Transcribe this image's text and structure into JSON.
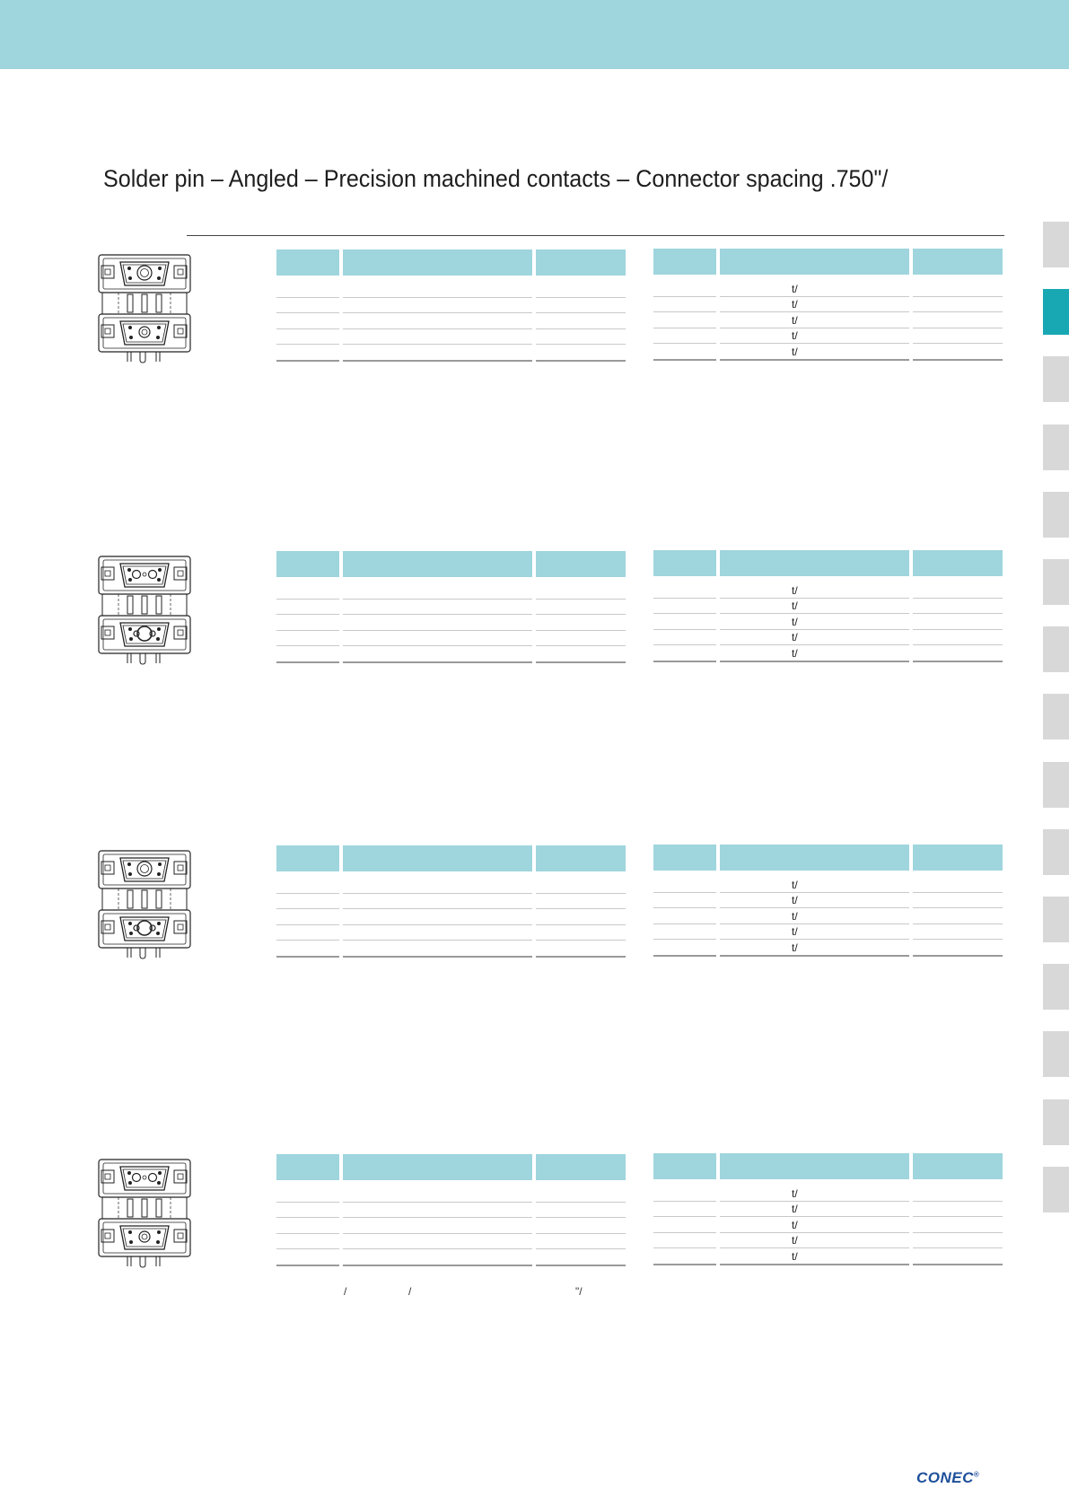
{
  "header": {
    "title": "Solder pin – Angled – Precision machined contacts – Connector spacing .750\"/"
  },
  "side_tabs": {
    "count": 15,
    "active_index": 1
  },
  "sections": [
    {
      "id": "s1",
      "table_right_cells": [
        "t/",
        "t/",
        "t/",
        "t/",
        "t/"
      ]
    },
    {
      "id": "s2",
      "table_right_cells": [
        "t/",
        "t/",
        "t/",
        "t/",
        "t/"
      ]
    },
    {
      "id": "s3",
      "table_right_cells": [
        "t/",
        "t/",
        "t/",
        "t/",
        "t/"
      ]
    },
    {
      "id": "s4",
      "table_right_cells": [
        "t/",
        "t/",
        "t/",
        "t/",
        "t/"
      ]
    }
  ],
  "footnote": {
    "marks": [
      "/",
      "/",
      "\"/"
    ]
  },
  "footer": {
    "logo_text": "CONEC",
    "logo_mark": "®"
  },
  "colors": {
    "band": "#9fd5dd",
    "table_header": "#9fd5dd",
    "tab_active": "#18a8b3",
    "tab_inactive": "#d8d8d8",
    "logo": "#1d4f9a"
  }
}
